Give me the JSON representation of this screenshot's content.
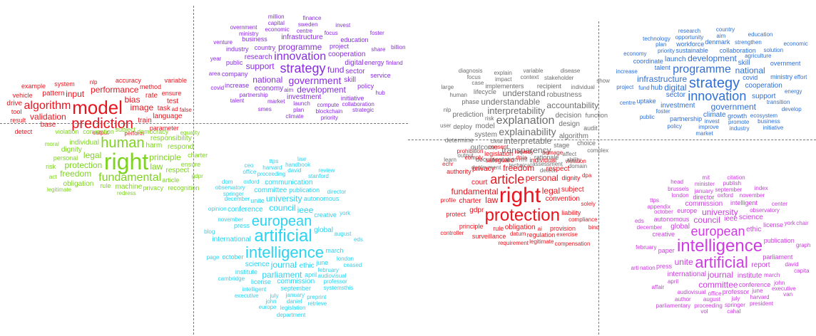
{
  "colors": {
    "red": "#e8141e",
    "green": "#7ed320",
    "purple": "#8a2be2",
    "cyan": "#2ad3f0",
    "gray": "#6e6e6e",
    "blue": "#2f6fd6",
    "magenta": "#cc3ce0",
    "divider": "#777777"
  },
  "panels": [
    {
      "id": "left",
      "clusters": [
        {
          "id": "red-left",
          "color": "red",
          "words": [
            "model",
            "prediction",
            "algorithm",
            "bias",
            "image",
            "input",
            "performance",
            "validation",
            "pattern",
            "rate",
            "task",
            "train",
            "test",
            "language",
            "base",
            "drive",
            "vehicle",
            "system",
            "method",
            "ensure",
            "tool",
            "example",
            "result",
            "accuracy",
            "parameter",
            "detect",
            "variable",
            "offensive",
            "nlp",
            "output",
            "false",
            "interpretable",
            "perform",
            "dataset",
            "word",
            "attack",
            "error",
            "feature",
            "behaviour",
            "explanation",
            "interpretability",
            "ad",
            "neural",
            "case",
            "affect",
            "impact",
            "face"
          ]
        },
        {
          "id": "green-left",
          "color": "green",
          "words": [
            "right",
            "human",
            "fundamental",
            "protection",
            "principle",
            "law",
            "legal",
            "freedom",
            "harm",
            "individual",
            "respect",
            "respond",
            "machine",
            "responsibility",
            "obligation",
            "dignity",
            "personal",
            "ensure",
            "article",
            "convention",
            "charter",
            "democracy",
            "privacy",
            "rule",
            "recognition",
            "risk",
            "subject",
            "violation",
            "redress",
            "equality",
            "legitimate",
            "gdpr",
            "moral",
            "fairness",
            "learn",
            "act",
            "regulation",
            "review",
            "apply",
            "society",
            "effect"
          ]
        },
        {
          "id": "purple-left",
          "color": "purple",
          "words": [
            "strategy",
            "innovation",
            "government",
            "programme",
            "fund",
            "development",
            "national",
            "support",
            "cooperation",
            "research",
            "digital",
            "economy",
            "sector",
            "investment",
            "infrastructure",
            "skill",
            "country",
            "project",
            "company",
            "increase",
            "public",
            "industry",
            "energy",
            "business",
            "education",
            "service",
            "policy",
            "initiative",
            "launch",
            "partnership",
            "market",
            "centre",
            "compute",
            "economic",
            "focus",
            "share",
            "aim",
            "plan",
            "area",
            "year",
            "ministry",
            "sweden",
            "finland",
            "hub",
            "collaboration",
            "blockchain",
            "smes",
            "talent",
            "venture",
            "capital",
            "invest",
            "climate",
            "overnment",
            "covid",
            "finance",
            "foster",
            "strategic",
            "priority",
            "million",
            "billion"
          ]
        },
        {
          "id": "cyan-left",
          "color": "cyan",
          "words": [
            "artificial",
            "intelligence",
            "european",
            "council",
            "journal",
            "ieee",
            "university",
            "parliament",
            "conference",
            "committee",
            "science",
            "ethic",
            "commission",
            "communication",
            "global",
            "international",
            "autonomous",
            "publication",
            "press",
            "creative",
            "license",
            "institute",
            "unite",
            "june",
            "april",
            "march",
            "september",
            "october",
            "november",
            "december",
            "february",
            "august",
            "january",
            "july",
            "intelligent",
            "proceeding",
            "oxford",
            "audiovisual",
            "springer",
            "david",
            "york",
            "london",
            "daniel",
            "john",
            "cambridge",
            "harvard",
            "stanford",
            "director",
            "professor",
            "executive",
            "observatory",
            "preprint",
            "handbook",
            "legislation",
            "opinion",
            "office",
            "europe",
            "page",
            "blog",
            "ttps",
            "eds",
            "systemsthis",
            "ceased",
            "retrieve",
            "dom",
            "ceo",
            "law",
            "review",
            "department"
          ]
        }
      ]
    },
    {
      "id": "right",
      "clusters": [
        {
          "id": "gray-right",
          "color": "gray",
          "words": [
            "explanation",
            "explainability",
            "interpretability",
            "interpretable",
            "understandable",
            "understand",
            "transparency",
            "accountability",
            "decision",
            "design",
            "system",
            "model",
            "algorithm",
            "prediction",
            "robustness",
            "outcome",
            "stage",
            "deploy",
            "phase",
            "lifecycle",
            "implementers",
            "recipient",
            "rationale",
            "documentation",
            "function",
            "audit",
            "choice",
            "determine",
            "affect",
            "impact",
            "clear",
            "context",
            "risk",
            "assessment",
            "technical",
            "stakeholder",
            "human",
            "individual",
            "user",
            "ability",
            "output",
            "case",
            "explain",
            "rmf",
            "variable",
            "complex",
            "nlp",
            "detect",
            "deployment",
            "focus",
            "domain",
            "large",
            "disease",
            "learn",
            "diagnosis",
            "show",
            "purpose",
            "neural",
            "base",
            "train",
            "pattern"
          ]
        },
        {
          "id": "blue-right",
          "color": "blue",
          "words": [
            "strategy",
            "innovation",
            "programme",
            "development",
            "digital",
            "national",
            "government",
            "infrastructure",
            "cooperation",
            "investment",
            "sector",
            "support",
            "skill",
            "launch",
            "climate",
            "hub",
            "sustainable",
            "collaboration",
            "covid",
            "ministry",
            "partnership",
            "growth",
            "coordinate",
            "workforce",
            "overnment",
            "talent",
            "uptake",
            "denmark",
            "agriculture",
            "transition",
            "invest",
            "foster",
            "fund",
            "ecosystem",
            "priority",
            "energy",
            "promote",
            "strengthen",
            "solution",
            "improve",
            "effort",
            "opportunity",
            "increase",
            "project",
            "plan",
            "aim",
            "develop",
            "business",
            "industry",
            "policy",
            "economy",
            "public",
            "market",
            "technology",
            "research",
            "country",
            "education",
            "centre",
            "initiative",
            "economic"
          ]
        },
        {
          "id": "red-right",
          "color": "red",
          "words": [
            "right",
            "protection",
            "article",
            "personal",
            "fundamental",
            "law",
            "legal",
            "freedom",
            "convention",
            "charter",
            "court",
            "gdpr",
            "obligation",
            "subject",
            "privacy",
            "respect",
            "safeguard",
            "dignity",
            "liability",
            "individual",
            "provision",
            "regulation",
            "principle",
            "legislation",
            "rule",
            "protect",
            "surveillance",
            "authority",
            "datum",
            "compliance",
            "remedy",
            "damage",
            "violation",
            "legitimate",
            "requirement",
            "profile",
            "exercise",
            "solely",
            "comply",
            "consent",
            "compensation",
            "prohibition",
            "dpia",
            "controller",
            "prohibit",
            "dpa",
            "enshrine",
            "echr",
            "treaty",
            "bind",
            "directive",
            "democracy",
            "ensure",
            "party",
            "apply",
            "violate",
            "human",
            "ai"
          ]
        },
        {
          "id": "magenta-right",
          "color": "magenta",
          "words": [
            "intelligence",
            "artificial",
            "european",
            "council",
            "journal",
            "university",
            "committee",
            "unite",
            "ieee",
            "science",
            "ethic",
            "institute",
            "global",
            "international",
            "commission",
            "report",
            "autonomous",
            "europe",
            "paper",
            "intelligent",
            "publication",
            "parliament",
            "conference",
            "creative",
            "license",
            "professor",
            "director",
            "press",
            "office",
            "observatory",
            "audiovisual",
            "oxford",
            "march",
            "april",
            "june",
            "july",
            "august",
            "september",
            "october",
            "november",
            "february",
            "december",
            "january",
            "london",
            "york",
            "david",
            "john",
            "harvard",
            "springer",
            "proceeding",
            "author",
            "appendix",
            "minister",
            "publish",
            "nation",
            "center",
            "affair",
            "brussels",
            "index",
            "executive",
            "president",
            "graph",
            "cahal",
            "vol",
            "eds",
            "ttps",
            "mit",
            "citation",
            "capita",
            "chair",
            "parliamentary",
            "head",
            "van",
            "arti"
          ]
        }
      ]
    }
  ]
}
